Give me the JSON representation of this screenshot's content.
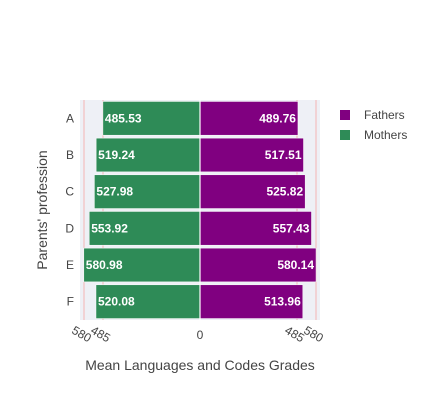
{
  "chart_data": {
    "type": "bar",
    "orientation": "horizontal",
    "barmode": "relative",
    "categories": [
      "A",
      "B",
      "C",
      "D",
      "E",
      "F"
    ],
    "series": [
      {
        "name": "Fathers",
        "values": [
          489.76,
          517.51,
          525.82,
          557.43,
          580.14,
          513.96
        ],
        "color": "#800080",
        "side": "right"
      },
      {
        "name": "Mothers",
        "values": [
          485.53,
          519.24,
          527.98,
          553.92,
          580.98,
          520.08
        ],
        "color": "#2e8b57",
        "side": "left"
      }
    ],
    "data_labels": {
      "Fathers": [
        "489.76",
        "517.51",
        "525.82",
        "557.43",
        "580.14",
        "513.96"
      ],
      "Mothers": [
        "485.53",
        "519.24",
        "527.98",
        "553.92",
        "580.98",
        "520.08"
      ]
    },
    "xlabel": "Mean Languages and Codes Grades",
    "ylabel": "Parents' profession",
    "xlim": [
      -600,
      600
    ],
    "x_ticks": [
      {
        "value": -580,
        "label": "580"
      },
      {
        "value": -485,
        "label": "485"
      },
      {
        "value": 0,
        "label": "0"
      },
      {
        "value": 485,
        "label": "485"
      },
      {
        "value": 580,
        "label": "580"
      }
    ],
    "reference_lines": [
      -580,
      -485,
      485,
      580
    ],
    "reference_line_color": "#f4b4b4",
    "plot_background": "#eef0f6",
    "legend_position": "top-right"
  }
}
